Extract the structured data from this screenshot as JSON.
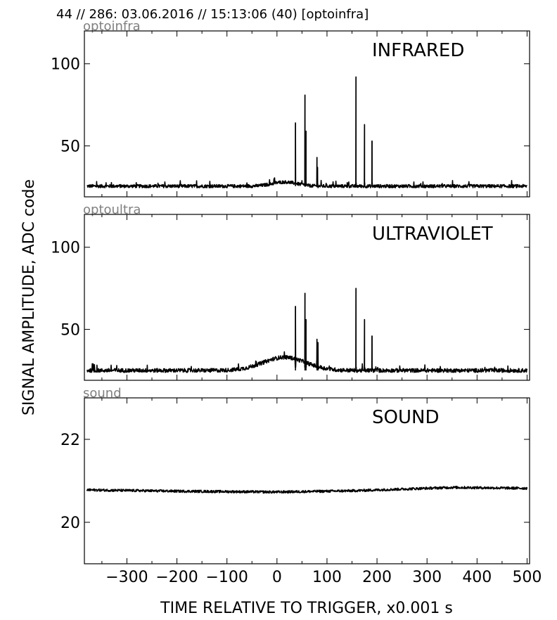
{
  "header": {
    "title": "44 // 286:   03.06.2016 // 15:13:06 (40)  [optoinfra]"
  },
  "chart_data": {
    "type": "line",
    "xlabel": "TIME RELATIVE TO TRIGGER,   x0.001 s",
    "ylabel": "SIGNAL AMPLITUDE,  ADC code",
    "xlim": [
      -385,
      505
    ],
    "x_ticks": [
      -300,
      -200,
      -100,
      0,
      100,
      200,
      300,
      400,
      500
    ],
    "x_tick_labels": [
      "−300",
      "−200",
      "−100",
      "0",
      "100",
      "200",
      "300",
      "400",
      "500"
    ],
    "grid": false,
    "panels": [
      {
        "channel": "optoinfra",
        "label": "INFRARED",
        "ylim": [
          19,
          120
        ],
        "y_ticks": [
          50,
          100
        ],
        "y_tick_labels": [
          "50",
          "100"
        ],
        "baseline": 25.5,
        "noise": 1.0,
        "bump": {
          "center": 15,
          "width": 35,
          "height": 2.5
        },
        "spikes": [
          {
            "x": 37,
            "y": 64
          },
          {
            "x": 56,
            "y": 81
          },
          {
            "x": 58,
            "y": 59
          },
          {
            "x": 80,
            "y": 43
          },
          {
            "x": 81,
            "y": 37
          },
          {
            "x": 158,
            "y": 92
          },
          {
            "x": 175,
            "y": 63
          },
          {
            "x": 190,
            "y": 53
          }
        ]
      },
      {
        "channel": "optoultra",
        "label": "ULTRAVIOLET",
        "ylim": [
          19,
          120
        ],
        "y_ticks": [
          50,
          100
        ],
        "y_tick_labels": [
          "50",
          "100"
        ],
        "baseline": 25.0,
        "noise": 1.2,
        "bump": {
          "center": 15,
          "width": 60,
          "height": 8
        },
        "spikes": [
          {
            "x": 37,
            "y": 64
          },
          {
            "x": 56,
            "y": 72
          },
          {
            "x": 58,
            "y": 56
          },
          {
            "x": 80,
            "y": 44
          },
          {
            "x": 82,
            "y": 42
          },
          {
            "x": 158,
            "y": 75
          },
          {
            "x": 175,
            "y": 56
          },
          {
            "x": 190,
            "y": 46
          }
        ]
      },
      {
        "channel": "sound",
        "label": "SOUND",
        "ylim": [
          19,
          23
        ],
        "y_ticks": [
          20,
          22
        ],
        "y_tick_labels": [
          "20",
          "22"
        ],
        "baseline": 20.78,
        "noise": 0.03,
        "drift": [
          {
            "x": -380,
            "y": 20.78
          },
          {
            "x": -200,
            "y": 20.75
          },
          {
            "x": 0,
            "y": 20.73
          },
          {
            "x": 150,
            "y": 20.76
          },
          {
            "x": 350,
            "y": 20.84
          },
          {
            "x": 500,
            "y": 20.82
          }
        ],
        "spikes": []
      }
    ]
  }
}
